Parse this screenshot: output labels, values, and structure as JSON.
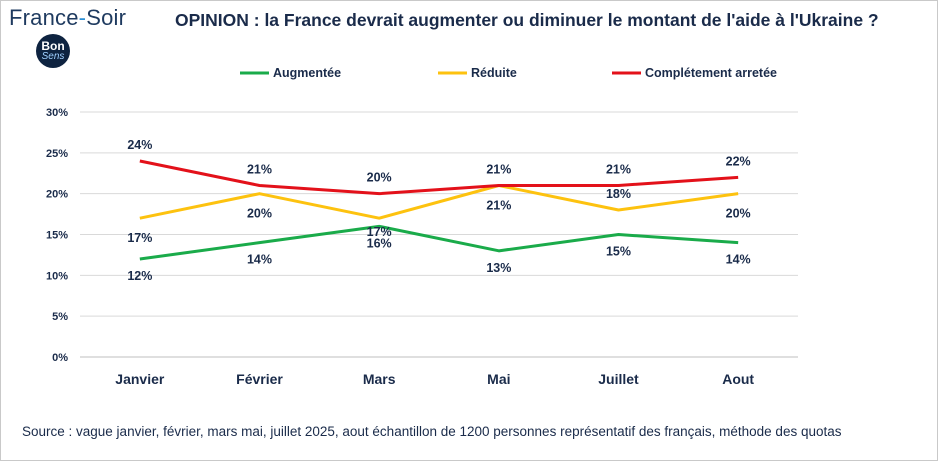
{
  "brand": {
    "name": "France-Soir",
    "name_part1": "France",
    "name_dash": "-",
    "name_part2": "Soir",
    "badge_line1": "Bon",
    "badge_line2": "Sens"
  },
  "title": "OPINION : la France devrait augmenter ou diminuer le montant de l'aide à l'Ukraine ?",
  "source": "Source : vague janvier, février, mars  mai, juillet 2025, aout  échantillon de 1200 personnes représentatif des français, méthode des quotas",
  "chart_data": {
    "type": "line",
    "categories": [
      "Janvier",
      "Février",
      "Mars",
      "Mai",
      "Juillet",
      "Aout"
    ],
    "series": [
      {
        "name": "Augmentée",
        "color": "#1aab4a",
        "values": [
          12,
          14,
          16,
          13,
          15,
          14
        ],
        "labels": [
          "12%",
          "14%",
          "16%",
          "13%",
          "15%",
          "14%"
        ]
      },
      {
        "name": "Réduite",
        "color": "#fdc20f",
        "values": [
          17,
          20,
          17,
          21,
          18,
          20
        ],
        "labels": [
          "17%",
          "20%",
          "17%",
          "21%",
          "18%",
          "20%"
        ]
      },
      {
        "name": "Complétement arretée",
        "color": "#e3111a",
        "values": [
          24,
          21,
          20,
          21,
          21,
          22
        ],
        "labels": [
          "24%",
          "21%",
          "20%",
          "21%",
          "21%",
          "22%"
        ]
      }
    ],
    "y_ticks": [
      "0%",
      "5%",
      "10%",
      "15%",
      "20%",
      "25%",
      "30%"
    ],
    "ylim": [
      0,
      30
    ],
    "grid": true,
    "legend_position": "top"
  }
}
